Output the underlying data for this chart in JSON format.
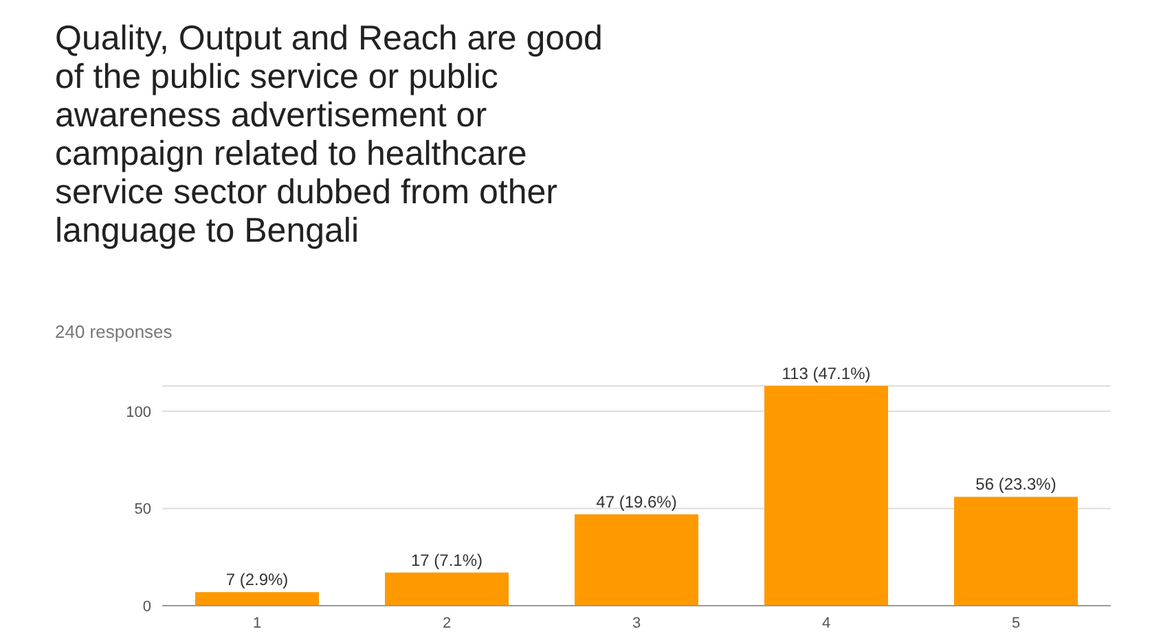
{
  "chart_data": {
    "type": "bar",
    "title": "Quality, Output and Reach are good of the public service or public awareness advertisement or campaign related to healthcare service sector dubbed from other language to Bengali",
    "subtitle": "240 responses",
    "categories": [
      "1",
      "2",
      "3",
      "4",
      "5"
    ],
    "values": [
      7,
      17,
      47,
      113,
      56
    ],
    "color": "#ff9900",
    "value_labels": [
      "7 (2.9%)",
      "17 (7.1%)",
      "47 (19.6%)",
      "113 (47.1%)",
      "56 (23.3%)"
    ],
    "ylim": [
      0,
      113
    ],
    "yticks": [
      0,
      50,
      100
    ],
    "grid": "y"
  }
}
